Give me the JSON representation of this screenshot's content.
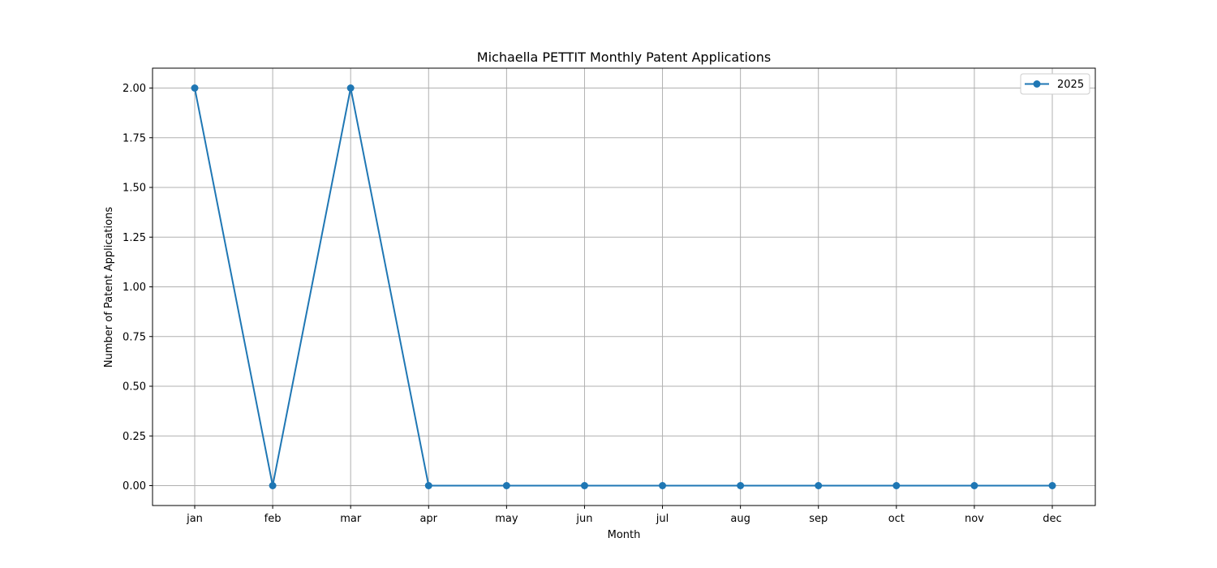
{
  "chart_data": {
    "type": "line",
    "title": "Michaella PETTIT Monthly Patent Applications",
    "xlabel": "Month",
    "ylabel": "Number of Patent Applications",
    "categories": [
      "jan",
      "feb",
      "mar",
      "apr",
      "may",
      "jun",
      "jul",
      "aug",
      "sep",
      "oct",
      "nov",
      "dec"
    ],
    "series": [
      {
        "name": "2025",
        "values": [
          2,
          0,
          2,
          0,
          0,
          0,
          0,
          0,
          0,
          0,
          0,
          0
        ],
        "color": "#1f77b4"
      }
    ],
    "ylim": [
      -0.1,
      2.1
    ],
    "yticks": [
      "0.00",
      "0.25",
      "0.50",
      "0.75",
      "1.00",
      "1.25",
      "1.50",
      "1.75",
      "2.00"
    ],
    "grid": true,
    "legend_position": "top-right"
  }
}
